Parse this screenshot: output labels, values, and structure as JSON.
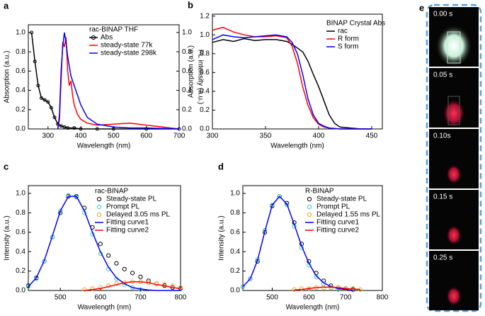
{
  "chart_data": [
    {
      "type": "line",
      "panel_label": "a",
      "legend_title": "rac-BINAP THF",
      "xlabel": "Wavelength (nm)",
      "ylabel": "Absorption (a.u.)",
      "y2label": "PL intensity (a.u.)",
      "xlim": [
        240,
        700
      ],
      "xticks": [
        300,
        400,
        500,
        600,
        700
      ],
      "ylim": [
        0,
        1.08
      ],
      "yticks": [
        {
          "value": 0,
          "label": "0.0"
        },
        0.2,
        0.4,
        0.6,
        0.8,
        {
          "value": 1,
          "label": "1.0"
        }
      ],
      "y2lim": [
        0,
        1.08
      ],
      "y2ticks": [
        {
          "value": 0,
          "label": "0.0"
        },
        0.2,
        0.4,
        0.6,
        0.8,
        {
          "value": 1,
          "label": "1.0"
        }
      ],
      "series": [
        {
          "name": "Abs",
          "color": "#000000",
          "line": true,
          "marker": "open",
          "x": [
            250,
            260,
            270,
            280,
            290,
            300,
            310,
            320,
            330,
            340,
            350,
            360,
            380,
            400,
            450,
            500,
            600,
            700
          ],
          "values": [
            1.0,
            0.7,
            0.45,
            0.32,
            0.3,
            0.28,
            0.22,
            0.12,
            0.05,
            0.03,
            0.02,
            0.01,
            0.01,
            0,
            0,
            0,
            0,
            0
          ]
        },
        {
          "name": "steady-state 77k",
          "color": "#ff0000",
          "line": true,
          "axis": "y2",
          "x": [
            330,
            335,
            340,
            345,
            350,
            355,
            360,
            365,
            370,
            375,
            380,
            390,
            400,
            420,
            450,
            500,
            550,
            600,
            650,
            700
          ],
          "values": [
            0,
            0.1,
            0.5,
            0.9,
            0.85,
            0.95,
            0.6,
            0.45,
            0.5,
            0.35,
            0.25,
            0.15,
            0.1,
            0.06,
            0.04,
            0.05,
            0.06,
            0.04,
            0.02,
            0
          ]
        },
        {
          "name": "steady-state 298k",
          "color": "#0000ff",
          "line": true,
          "axis": "y2",
          "x": [
            330,
            335,
            340,
            345,
            350,
            355,
            360,
            370,
            380,
            390,
            400,
            420,
            450,
            500,
            550,
            600,
            700
          ],
          "values": [
            0,
            0.15,
            0.6,
            0.85,
            1.0,
            0.9,
            0.75,
            0.55,
            0.45,
            0.35,
            0.25,
            0.12,
            0.05,
            0.02,
            0.01,
            0.01,
            0
          ]
        }
      ]
    },
    {
      "type": "line",
      "panel_label": "b",
      "legend_title": "BINAP Crystal Abs",
      "xlabel": "Wavelength (nm)",
      "ylabel": "Absorption (a.u.)",
      "xlim": [
        300,
        460
      ],
      "xticks": [
        300,
        350,
        400,
        450
      ],
      "ylim": [
        0,
        1.22
      ],
      "yticks": [
        {
          "value": 0,
          "label": "0.0"
        },
        0.2,
        0.4,
        0.6,
        0.8,
        {
          "value": 1,
          "label": "1.0"
        },
        1.2
      ],
      "series": [
        {
          "name": "rac",
          "color": "#000000",
          "line": true,
          "x": [
            300,
            310,
            320,
            330,
            340,
            350,
            360,
            370,
            375,
            380,
            385,
            390,
            395,
            400,
            405,
            410,
            415,
            420,
            430,
            440,
            450
          ],
          "values": [
            0.92,
            0.95,
            0.93,
            0.96,
            0.94,
            0.95,
            0.95,
            0.93,
            0.9,
            0.86,
            0.82,
            0.72,
            0.58,
            0.45,
            0.3,
            0.15,
            0.06,
            0.02,
            0.01,
            0,
            0
          ]
        },
        {
          "name": "R form",
          "color": "#ff0000",
          "line": true,
          "x": [
            300,
            310,
            320,
            330,
            340,
            350,
            360,
            370,
            375,
            380,
            385,
            390,
            395,
            400,
            405,
            410,
            420,
            430,
            440,
            450
          ],
          "values": [
            1.05,
            1.08,
            1.03,
            1.0,
            0.98,
            0.98,
            0.99,
            0.97,
            0.88,
            0.7,
            0.45,
            0.25,
            0.12,
            0.05,
            0.02,
            0.01,
            0,
            0,
            0,
            0
          ]
        },
        {
          "name": "S form",
          "color": "#0000ff",
          "line": true,
          "x": [
            300,
            310,
            320,
            330,
            340,
            350,
            360,
            370,
            375,
            380,
            385,
            390,
            395,
            400,
            405,
            410,
            420,
            430,
            440,
            450
          ],
          "values": [
            0.95,
            1.0,
            0.98,
            0.97,
            0.98,
            0.99,
            1.0,
            0.98,
            0.92,
            0.8,
            0.58,
            0.32,
            0.15,
            0.06,
            0.03,
            0.01,
            0,
            0,
            0,
            0
          ]
        }
      ]
    },
    {
      "type": "line",
      "panel_label": "c",
      "legend_title": "rac-BINAP",
      "xlabel": "Wavelength (nm)",
      "ylabel": "Intensity (a.u.)",
      "xlim": [
        420,
        800
      ],
      "xticks": [
        500,
        600,
        700,
        800
      ],
      "ylim": [
        0,
        1.08
      ],
      "yticks": [
        {
          "value": 0,
          "label": "0.0"
        },
        0.2,
        0.4,
        0.6,
        0.8,
        {
          "value": 1,
          "label": "1.0"
        }
      ],
      "series": [
        {
          "name": "Steady-state PL",
          "color": "#000000",
          "marker": "open",
          "x": [
            420,
            440,
            460,
            480,
            500,
            520,
            540,
            560,
            580,
            600,
            620,
            640,
            660,
            680,
            700,
            720,
            740,
            760,
            780,
            800
          ],
          "values": [
            0.05,
            0.13,
            0.3,
            0.55,
            0.8,
            0.97,
            0.97,
            0.85,
            0.65,
            0.48,
            0.36,
            0.28,
            0.22,
            0.18,
            0.14,
            0.1,
            0.07,
            0.05,
            0.03,
            0.02
          ]
        },
        {
          "name": "Prompt PL",
          "color": "#3cc8c8",
          "marker": "open",
          "x": [
            420,
            440,
            460,
            480,
            500,
            520,
            540,
            560,
            580,
            600,
            620,
            640,
            660,
            680,
            700
          ],
          "values": [
            0.04,
            0.12,
            0.3,
            0.55,
            0.82,
            0.98,
            0.96,
            0.8,
            0.58,
            0.38,
            0.22,
            0.12,
            0.06,
            0.03,
            0.01
          ]
        },
        {
          "name": "Delayed 3.05 ms PL",
          "color": "#f0a020",
          "marker": "open",
          "x": [
            560,
            580,
            600,
            620,
            640,
            660,
            680,
            700,
            720,
            740,
            760,
            780,
            800
          ],
          "values": [
            0.01,
            0.02,
            0.03,
            0.05,
            0.07,
            0.08,
            0.09,
            0.09,
            0.08,
            0.07,
            0.06,
            0.05,
            0.03
          ]
        },
        {
          "name": "Fitting curve1",
          "color": "#0000ff",
          "line": true,
          "x": [
            420,
            440,
            460,
            480,
            500,
            520,
            540,
            560,
            580,
            600,
            620,
            640,
            660,
            680,
            700,
            720,
            740,
            760,
            780,
            800
          ],
          "values": [
            0.04,
            0.13,
            0.31,
            0.56,
            0.82,
            0.97,
            0.97,
            0.82,
            0.6,
            0.4,
            0.24,
            0.13,
            0.07,
            0.03,
            0.015,
            0.005,
            0,
            0,
            0,
            0
          ]
        },
        {
          "name": "Fitting curve2",
          "color": "#ff0000",
          "line": true,
          "x": [
            560,
            580,
            600,
            620,
            640,
            660,
            680,
            700,
            720,
            740,
            760,
            780,
            800
          ],
          "values": [
            0,
            0.01,
            0.02,
            0.04,
            0.06,
            0.08,
            0.09,
            0.09,
            0.08,
            0.06,
            0.05,
            0.03,
            0.02
          ]
        }
      ]
    },
    {
      "type": "line",
      "panel_label": "d",
      "legend_title": "R-BINAP",
      "xlabel": "Wavelength (nm)",
      "ylabel": "Intensity (a.u.)",
      "xlim": [
        420,
        800
      ],
      "xticks": [
        500,
        600,
        700,
        800
      ],
      "ylim": [
        0,
        1.08
      ],
      "yticks": [
        {
          "value": 0,
          "label": "0.0"
        },
        0.2,
        0.4,
        0.6,
        0.8,
        {
          "value": 1,
          "label": "1.0"
        }
      ],
      "series": [
        {
          "name": "Steady-state PL",
          "color": "#000000",
          "marker": "open",
          "x": [
            420,
            440,
            460,
            480,
            500,
            520,
            540,
            560,
            580,
            600,
            620,
            640,
            660,
            680,
            700,
            720
          ],
          "values": [
            0.04,
            0.12,
            0.3,
            0.6,
            0.87,
            0.97,
            0.9,
            0.7,
            0.48,
            0.3,
            0.18,
            0.1,
            0.05,
            0.03,
            0.02,
            0.01
          ]
        },
        {
          "name": "Prompt PL",
          "color": "#3cc8c8",
          "marker": "open",
          "x": [
            420,
            440,
            460,
            480,
            500,
            520,
            540,
            560,
            580,
            600,
            620,
            640,
            660,
            680
          ],
          "values": [
            0.04,
            0.12,
            0.32,
            0.62,
            0.88,
            0.97,
            0.88,
            0.66,
            0.44,
            0.26,
            0.14,
            0.07,
            0.03,
            0.01
          ]
        },
        {
          "name": "Delayed 1.55 ms PL",
          "color": "#f0a020",
          "marker": "open",
          "x": [
            560,
            580,
            600,
            620,
            640,
            660,
            680,
            700,
            720,
            740
          ],
          "values": [
            0.01,
            0.02,
            0.02,
            0.03,
            0.03,
            0.03,
            0.03,
            0.02,
            0.02,
            0.01
          ]
        },
        {
          "name": "Fitting curve1",
          "color": "#0000ff",
          "line": true,
          "x": [
            420,
            440,
            460,
            480,
            500,
            520,
            540,
            560,
            580,
            600,
            620,
            640,
            660,
            680,
            700,
            720
          ],
          "values": [
            0.04,
            0.12,
            0.31,
            0.61,
            0.88,
            0.97,
            0.89,
            0.68,
            0.46,
            0.28,
            0.15,
            0.08,
            0.04,
            0.02,
            0.01,
            0
          ]
        },
        {
          "name": "Fitting curve2",
          "color": "#ff0000",
          "line": true,
          "x": [
            560,
            580,
            600,
            620,
            640,
            660,
            680,
            700,
            720,
            740
          ],
          "values": [
            0.005,
            0.01,
            0.02,
            0.03,
            0.035,
            0.035,
            0.03,
            0.02,
            0.015,
            0.01
          ]
        }
      ]
    }
  ],
  "panel_e": {
    "label": "e",
    "frames": [
      "0.00 s",
      "0.05 s",
      "0.10s",
      "0.15 s",
      "0.25 s"
    ]
  }
}
